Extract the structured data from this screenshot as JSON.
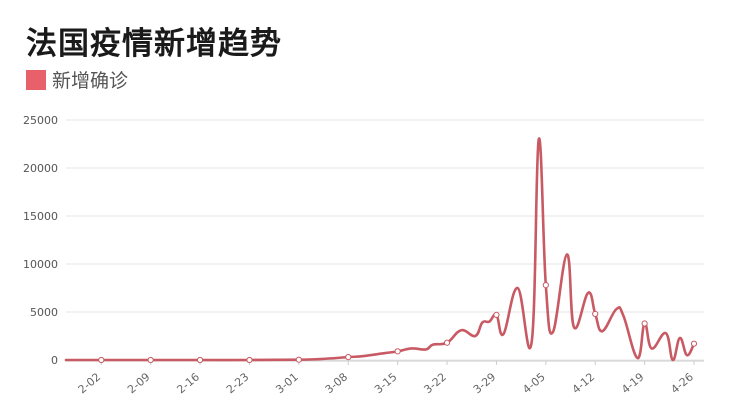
{
  "title": "法国疫情新增趋势",
  "legend": {
    "label": "新增确诊"
  },
  "colors": {
    "series": "#c85a64",
    "swatch": "#e8606a",
    "grid": "#e6e6e6",
    "axis": "#cccccc"
  },
  "chart_data": {
    "type": "line",
    "title": "法国疫情新增趋势",
    "smooth": true,
    "grid": true,
    "legend_position": "top-left",
    "ylim": [
      0,
      25000
    ],
    "yticks": [
      0,
      5000,
      10000,
      15000,
      20000,
      25000
    ],
    "xticks": [
      "2-02",
      "2-09",
      "2-16",
      "2-23",
      "3-01",
      "3-08",
      "3-15",
      "3-22",
      "3-29",
      "4-05",
      "4-12",
      "4-19",
      "4-26"
    ],
    "series": [
      {
        "name": "新增确诊",
        "points": [
          [
            "1-28",
            0
          ],
          [
            "2-02",
            0
          ],
          [
            "2-09",
            0
          ],
          [
            "2-16",
            0
          ],
          [
            "2-23",
            0
          ],
          [
            "3-01",
            30
          ],
          [
            "3-04",
            100
          ],
          [
            "3-08",
            300
          ],
          [
            "3-10",
            400
          ],
          [
            "3-13",
            700
          ],
          [
            "3-15",
            900
          ],
          [
            "3-17",
            1200
          ],
          [
            "3-19",
            1100
          ],
          [
            "3-20",
            1600
          ],
          [
            "3-22",
            1800
          ],
          [
            "3-24",
            3100
          ],
          [
            "3-26",
            2500
          ],
          [
            "3-27",
            3900
          ],
          [
            "3-28",
            4000
          ],
          [
            "3-29",
            4700
          ],
          [
            "3-30",
            2700
          ],
          [
            "4-01",
            7500
          ],
          [
            "4-03",
            1900
          ],
          [
            "4-04",
            23000
          ],
          [
            "4-05",
            7800
          ],
          [
            "4-06",
            2900
          ],
          [
            "4-08",
            11000
          ],
          [
            "4-09",
            3400
          ],
          [
            "4-11",
            7000
          ],
          [
            "4-12",
            4800
          ],
          [
            "4-13",
            3000
          ],
          [
            "4-15",
            5300
          ],
          [
            "4-16",
            4600
          ],
          [
            "4-18",
            200
          ],
          [
            "4-19",
            3800
          ],
          [
            "4-20",
            1200
          ],
          [
            "4-22",
            2800
          ],
          [
            "4-23",
            0
          ],
          [
            "4-24",
            2300
          ],
          [
            "4-25",
            500
          ],
          [
            "4-26",
            1700
          ]
        ]
      }
    ]
  }
}
